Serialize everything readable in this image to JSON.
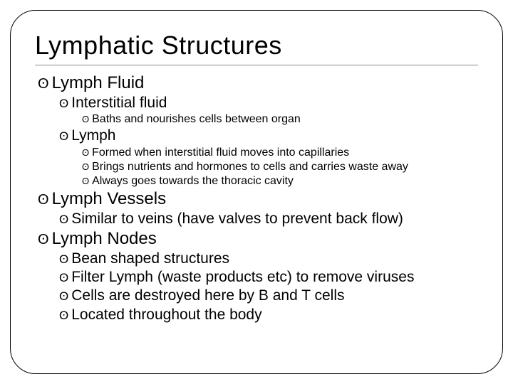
{
  "title": "Lymphatic Structures",
  "colors": {
    "background": "#ffffff",
    "text": "#000000",
    "border": "#000000",
    "rule": "#888888"
  },
  "bullet_glyph": "ʘ",
  "font_sizes_pt": {
    "title": 27,
    "l1": 18,
    "l2": 16,
    "l3": 12
  },
  "items": [
    {
      "level": 1,
      "text": "Lymph Fluid",
      "font": "sans"
    },
    {
      "level": 2,
      "text": "Interstitial fluid",
      "font": "comic"
    },
    {
      "level": 3,
      "text": "Baths and nourishes cells between organ",
      "font": "comic"
    },
    {
      "level": 2,
      "text": "Lymph",
      "font": "sans"
    },
    {
      "level": 3,
      "text": "Formed when interstitial fluid moves into capillaries",
      "font": "comic"
    },
    {
      "level": 3,
      "text": "Brings nutrients and hormones to cells and carries waste away",
      "font": "comic"
    },
    {
      "level": 3,
      "text": "Always goes towards the thoracic cavity",
      "font": "comic"
    },
    {
      "level": 1,
      "text": "Lymph Vessels",
      "font": "sans"
    },
    {
      "level": 2,
      "text": "Similar to veins (have valves to prevent back flow)",
      "font": "comic"
    },
    {
      "level": 1,
      "text": "Lymph Nodes",
      "font": "sans"
    },
    {
      "level": 2,
      "text": "Bean shaped structures",
      "font": "comic"
    },
    {
      "level": 2,
      "text": "Filter Lymph (waste products etc) to remove viruses",
      "font": "comic"
    },
    {
      "level": 2,
      "text": "Cells are destroyed here by B and T cells",
      "font": "comic"
    },
    {
      "level": 2,
      "text": "Located throughout the body",
      "font": "comic"
    }
  ]
}
